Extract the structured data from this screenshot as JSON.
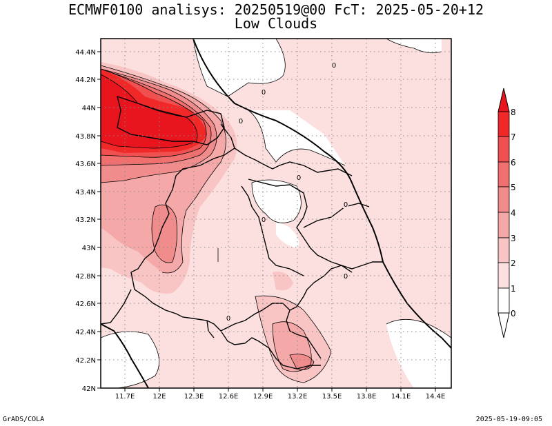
{
  "title_line1": "ECMWF0100 analisys: 20250519@00 FcT: 2025-05-20+12",
  "title_line2": "Low Clouds",
  "footer_left": "GrADS/COLA",
  "footer_right": "2025-05-19-09:05",
  "map": {
    "lon_ticks": [
      "11.7E",
      "12E",
      "12.3E",
      "12.6E",
      "12.9E",
      "13.2E",
      "13.5E",
      "13.8E",
      "14.1E",
      "14.4E"
    ],
    "lat_ticks": [
      "44.4N",
      "44.2N",
      "44N",
      "43.8N",
      "43.6N",
      "43.4N",
      "43.2N",
      "43N",
      "42.8N",
      "42.6N",
      "42.4N",
      "42.2N",
      "42N"
    ],
    "contour_labels": [
      "0",
      "0",
      "0",
      "0",
      "0",
      "0",
      "0",
      "0"
    ]
  },
  "colorbar": {
    "labels": [
      "8",
      "7",
      "6",
      "5",
      "4",
      "3",
      "2",
      "1",
      "0"
    ],
    "colors": [
      "#e8141e",
      "#f02828",
      "#f05050",
      "#f07070",
      "#f08c8c",
      "#f4a8a8",
      "#f8c4c4",
      "#fce0e0",
      "#ffffff"
    ]
  }
}
